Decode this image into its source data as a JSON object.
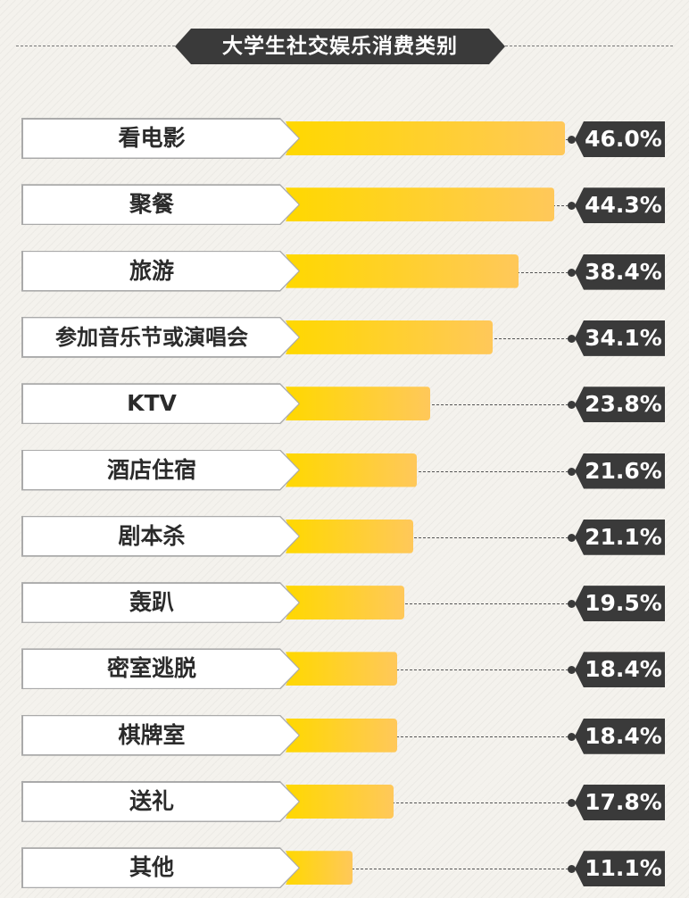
{
  "chart_data": {
    "type": "bar",
    "title": "大学生社交娱乐消费类别",
    "categories": [
      "看电影",
      "聚餐",
      "旅游",
      "参加音乐节或演唱会",
      "KTV",
      "酒店住宿",
      "剧本杀",
      "轰趴",
      "密室逃脱",
      "棋牌室",
      "送礼",
      "其他"
    ],
    "values": [
      46.0,
      44.3,
      38.4,
      34.1,
      23.8,
      21.6,
      21.1,
      19.5,
      18.4,
      18.4,
      17.8,
      11.1
    ],
    "value_labels": [
      "46.0%",
      "44.3%",
      "38.4%",
      "34.1%",
      "23.8%",
      "21.6%",
      "21.1%",
      "19.5%",
      "18.4%",
      "18.4%",
      "17.8%",
      "11.1%"
    ],
    "unit": "%",
    "orientation": "horizontal",
    "colors": {
      "bar_start": "#ffd800",
      "bar_end": "#ffc85a",
      "tag": "#3a3a3a",
      "title_bg": "#3a3a3a"
    }
  }
}
